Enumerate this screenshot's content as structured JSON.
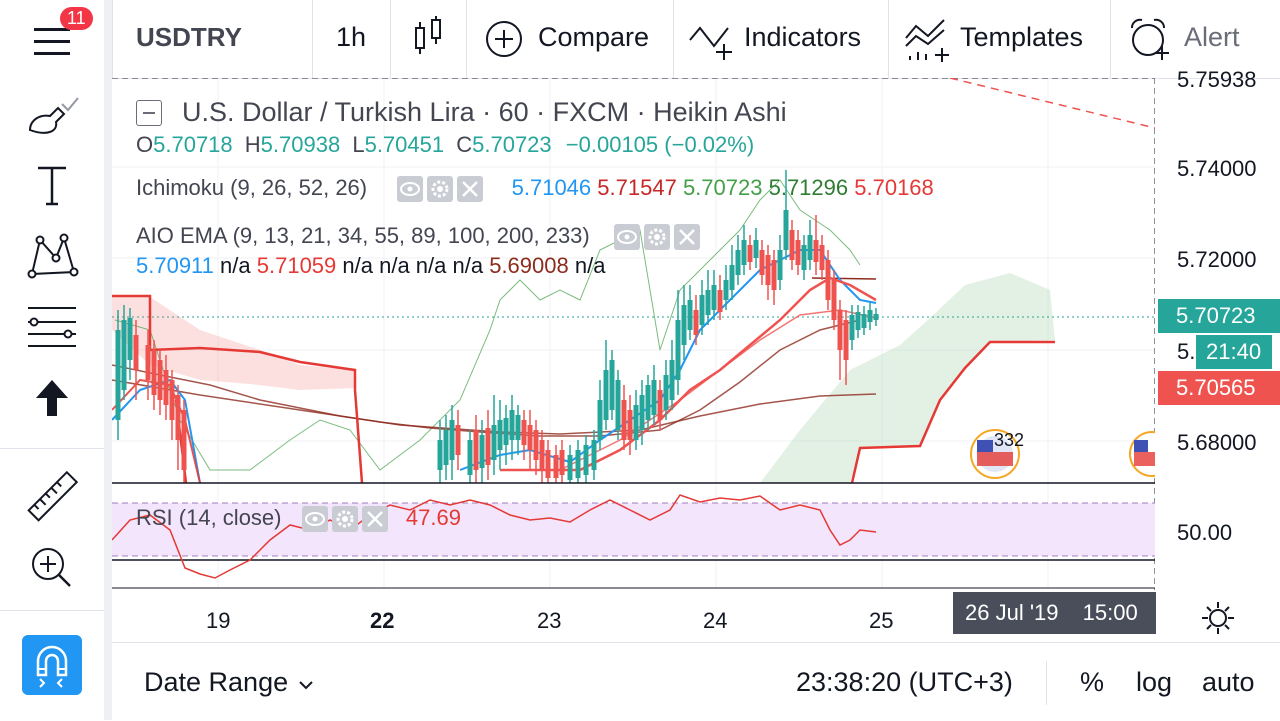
{
  "topbar": {
    "notification_count": "11",
    "symbol": "USDTRY",
    "interval": "1h",
    "compare": "Compare",
    "indicators": "Indicators",
    "templates": "Templates",
    "alert": "Alert"
  },
  "legend": {
    "title": "U.S. Dollar / Turkish Lira · 60 · FXCM · Heikin Ashi",
    "o_label": "O",
    "o_value": "5.70718",
    "h_label": "H",
    "h_value": "5.70938",
    "l_label": "L",
    "l_value": "5.70451",
    "c_label": "C",
    "c_value": "5.70723",
    "change": "−0.00105 (−0.02%)"
  },
  "ichimoku": {
    "label": "Ichimoku (9, 26, 52, 26)",
    "values": [
      {
        "text": "5.71046",
        "color": "#2196f3"
      },
      {
        "text": "5.71547",
        "color": "#c62828"
      },
      {
        "text": "5.70723",
        "color": "#43a047"
      },
      {
        "text": "5.71296",
        "color": "#2e7d32"
      },
      {
        "text": "5.70168",
        "color": "#e53935"
      }
    ]
  },
  "aio_ema": {
    "label": "AIO EMA (9, 13, 21, 34, 55, 89, 100, 200, 233)",
    "line2": [
      {
        "text": "5.70911",
        "color": "#2196f3"
      },
      {
        "text": "n/a",
        "color": "#131722"
      },
      {
        "text": "5.71059",
        "color": "#e53935"
      },
      {
        "text": "n/a n/a n/a n/a",
        "color": "#131722"
      },
      {
        "text": "5.69008",
        "color": "#8d2b1e"
      },
      {
        "text": "n/a",
        "color": "#131722"
      }
    ]
  },
  "rsi": {
    "label": "RSI (14, close)",
    "value": "47.69",
    "axis_label": "50.00"
  },
  "price_axis": {
    "top_partial": "5.75938",
    "labels": [
      "5.74000",
      "5.72000",
      "5.68000"
    ],
    "partial": "5.",
    "current_price": "5.70723",
    "countdown": "21:40",
    "other_price": "5.70565"
  },
  "event_badge": "332",
  "date_axis": {
    "labels": [
      "19",
      "22",
      "23",
      "24",
      "25"
    ],
    "crosshair_date": "26 Jul '19",
    "crosshair_time": "15:00"
  },
  "bottombar": {
    "date_range": "Date Range",
    "clock": "23:38:20 (UTC+3)",
    "percent": "%",
    "log": "log",
    "auto": "auto"
  },
  "colors": {
    "up": "#26a69a",
    "down": "#ef5350",
    "accent": "#2196f3",
    "rsi_bg": "#f3e5fb"
  }
}
